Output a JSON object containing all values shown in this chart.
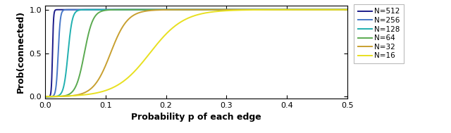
{
  "xlabel": "Probability p of each edge",
  "ylabel": "Prob(connected)",
  "xlim": [
    0,
    0.5
  ],
  "ylim": [
    -0.02,
    1.05
  ],
  "xticks": [
    0,
    0.1,
    0.2,
    0.3,
    0.4,
    0.5
  ],
  "yticks": [
    0,
    0.5,
    1
  ],
  "series": [
    {
      "N": 512,
      "color": "#1c1c8a",
      "lw": 1.4
    },
    {
      "N": 256,
      "color": "#4878c8",
      "lw": 1.4
    },
    {
      "N": 128,
      "color": "#20b0b0",
      "lw": 1.4
    },
    {
      "N": 64,
      "color": "#5aaa50",
      "lw": 1.4
    },
    {
      "N": 32,
      "color": "#c8a030",
      "lw": 1.4
    },
    {
      "N": 16,
      "color": "#e8e020",
      "lw": 1.4
    }
  ],
  "legend_labels": [
    "N=512",
    "N=256",
    "N=128",
    "N=64",
    "N=32",
    "N=16"
  ],
  "figsize": [
    6.4,
    1.89
  ],
  "dpi": 100,
  "xlabel_fontsize": 9,
  "ylabel_fontsize": 9,
  "tick_fontsize": 8,
  "legend_fontsize": 7.5
}
